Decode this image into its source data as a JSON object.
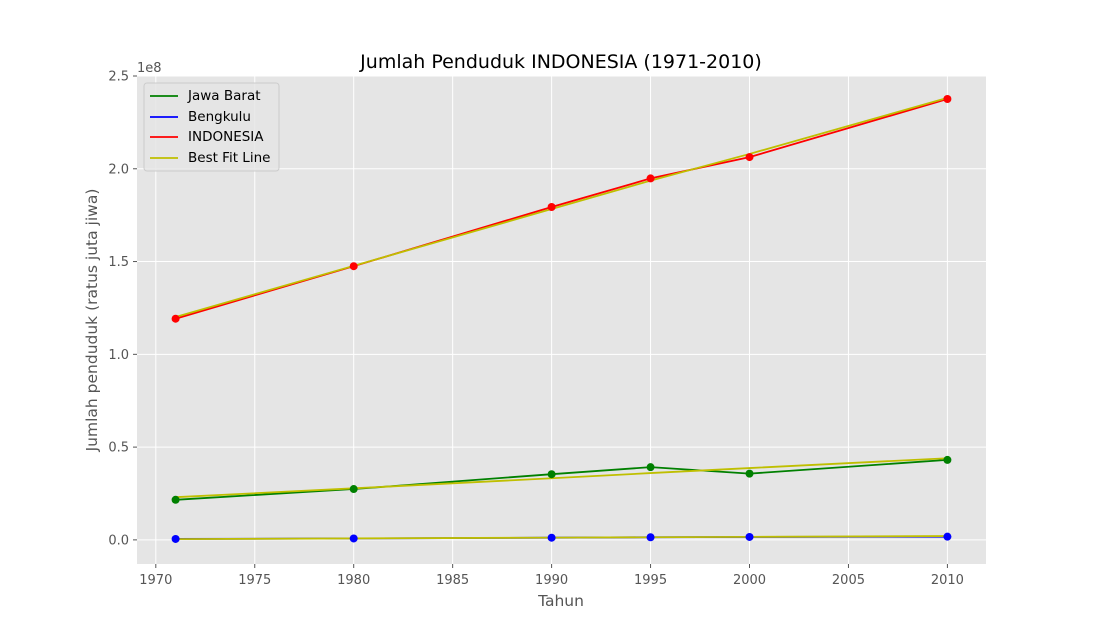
{
  "chart_data": {
    "type": "line",
    "title": "Jumlah Penduduk INDONESIA (1971-2010)",
    "xlabel": "Tahun",
    "ylabel": "Jumlah penduduk (ratus juta jiwa)",
    "y_offset_label": "1e8",
    "xlim": [
      1969.05,
      2011.95
    ],
    "ylim": [
      -13000000,
      250000000
    ],
    "x_ticks": [
      1970,
      1975,
      1980,
      1985,
      1990,
      1995,
      2000,
      2005,
      2010
    ],
    "x_tick_labels": [
      "1970",
      "1975",
      "1980",
      "1985",
      "1990",
      "1995",
      "2000",
      "2005",
      "2010"
    ],
    "y_ticks": [
      0,
      50000000,
      100000000,
      150000000,
      200000000,
      250000000
    ],
    "y_tick_labels": [
      "0.0",
      "0.5",
      "1.0",
      "1.5",
      "2.0",
      "2.5"
    ],
    "grid": true,
    "legend_position": "top-left",
    "x": [
      1971,
      1980,
      1990,
      1995,
      2000,
      2010
    ],
    "series": [
      {
        "name": "Jawa Barat",
        "color": "#008000",
        "values": [
          21600000,
          27400000,
          35400000,
          39200000,
          35700000,
          43100000
        ]
      },
      {
        "name": "Bengkulu",
        "color": "#0000ff",
        "values": [
          500000,
          770000,
          1180000,
          1410000,
          1570000,
          1720000
        ]
      },
      {
        "name": "INDONESIA",
        "color": "#ff0000",
        "values": [
          119200000,
          147500000,
          179400000,
          194800000,
          206300000,
          237600000
        ]
      }
    ],
    "best_fit": {
      "name": "Best Fit Line",
      "color": "#bfbf00",
      "lines": [
        {
          "for": "Jawa Barat",
          "values": [
            23000000,
            27800000,
            33200000,
            36000000,
            38700000,
            44000000
          ]
        },
        {
          "for": "Bengkulu",
          "values": [
            400000,
            780000,
            1200000,
            1400000,
            1630000,
            2050000
          ]
        },
        {
          "for": "INDONESIA",
          "values": [
            120100000,
            147700000,
            178300000,
            193600000,
            208000000,
            238200000
          ]
        }
      ]
    },
    "legend": [
      "Jawa Barat",
      "Bengkulu",
      "INDONESIA",
      "Best Fit Line"
    ]
  }
}
